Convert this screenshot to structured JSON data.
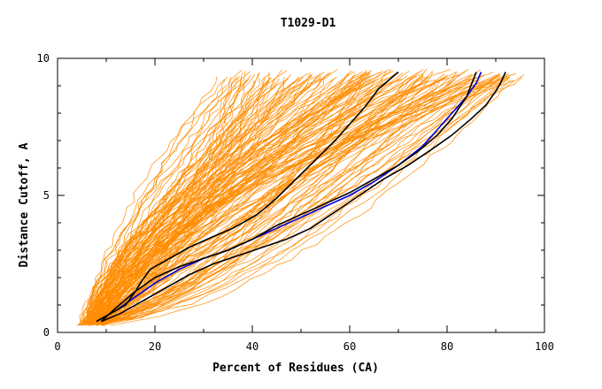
{
  "chart_data": {
    "type": "line",
    "title": "T1029-D1",
    "xlabel": "Percent of Residues (CA)",
    "ylabel": "Distance Cutoff, A",
    "xlim": [
      0,
      100
    ],
    "ylim": [
      0,
      10
    ],
    "x_ticks": [
      "0",
      "20",
      "40",
      "60",
      "80",
      "100"
    ],
    "y_ticks": [
      "0",
      "5",
      "10"
    ],
    "grid": false,
    "colors": {
      "highlight_model": "#0000dd",
      "reference_models": "#000000"
    },
    "series": [
      {
        "x": [
          8,
          12,
          16,
          20,
          25,
          30,
          35,
          40,
          45,
          50,
          55,
          60,
          65,
          70,
          75,
          78,
          80,
          82,
          84,
          86,
          87
        ],
        "y": [
          0.4,
          0.8,
          1.3,
          1.8,
          2.3,
          2.7,
          3.0,
          3.4,
          3.8,
          4.2,
          4.6,
          5.0,
          5.5,
          6.1,
          6.8,
          7.4,
          7.8,
          8.2,
          8.6,
          9.1,
          9.5
        ]
      },
      {
        "x": [
          8,
          11,
          14,
          16,
          17,
          19,
          23,
          27,
          32,
          36,
          41,
          45,
          49,
          53,
          57,
          60,
          63,
          66,
          70
        ],
        "y": [
          0.4,
          0.7,
          1.0,
          1.5,
          1.8,
          2.3,
          2.7,
          3.1,
          3.5,
          3.8,
          4.3,
          4.9,
          5.6,
          6.3,
          7.0,
          7.6,
          8.2,
          8.9,
          9.5
        ]
      },
      {
        "x": [
          9,
          12,
          16,
          20,
          25,
          30,
          35,
          40,
          45,
          50,
          55,
          60,
          65,
          70,
          74,
          78,
          81,
          84,
          86
        ],
        "y": [
          0.4,
          0.9,
          1.5,
          2.0,
          2.4,
          2.7,
          3.0,
          3.4,
          3.9,
          4.3,
          4.7,
          5.1,
          5.6,
          6.1,
          6.6,
          7.2,
          7.8,
          8.6,
          9.5
        ]
      },
      {
        "x": [
          9,
          13,
          17,
          22,
          27,
          32,
          37,
          42,
          47,
          52,
          57,
          62,
          67,
          72,
          77,
          81,
          85,
          88,
          90,
          91,
          92
        ],
        "y": [
          0.4,
          0.7,
          1.1,
          1.6,
          2.1,
          2.5,
          2.8,
          3.1,
          3.4,
          3.8,
          4.4,
          5.0,
          5.6,
          6.1,
          6.7,
          7.2,
          7.8,
          8.3,
          8.8,
          9.1,
          9.5
        ]
      }
    ]
  }
}
